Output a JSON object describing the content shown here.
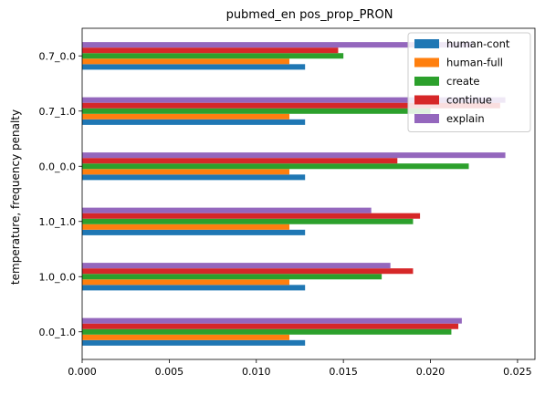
{
  "chart_data": {
    "type": "bar",
    "orientation": "horizontal",
    "title": "pubmed_en pos_prop_PRON",
    "xlabel": "",
    "ylabel": "temperature, frequency penalty",
    "categories": [
      "0.0_1.0",
      "1.0_0.0",
      "1.0_1.0",
      "0.0_0.0",
      "0.7_1.0",
      "0.7_0.0"
    ],
    "xlim": [
      0,
      0.026
    ],
    "xticks": [
      "0.000",
      "0.005",
      "0.010",
      "0.015",
      "0.020",
      "0.025"
    ],
    "grid": false,
    "legend_position": "top-right",
    "series": [
      {
        "name": "human-cont",
        "color": "#1f77b4",
        "values": [
          0.0128,
          0.0128,
          0.0128,
          0.0128,
          0.0128,
          0.0128
        ]
      },
      {
        "name": "human-full",
        "color": "#ff7f0e",
        "values": [
          0.0119,
          0.0119,
          0.0119,
          0.0119,
          0.0119,
          0.0119
        ]
      },
      {
        "name": "create",
        "color": "#2ca02c",
        "values": [
          0.0212,
          0.0172,
          0.019,
          0.0222,
          0.02,
          0.015
        ]
      },
      {
        "name": "continue",
        "color": "#d62728",
        "values": [
          0.0216,
          0.019,
          0.0194,
          0.0181,
          0.024,
          0.0147
        ]
      },
      {
        "name": "explain",
        "color": "#9467bd",
        "values": [
          0.0218,
          0.0177,
          0.0166,
          0.0243,
          0.0243,
          0.0224
        ]
      }
    ]
  }
}
